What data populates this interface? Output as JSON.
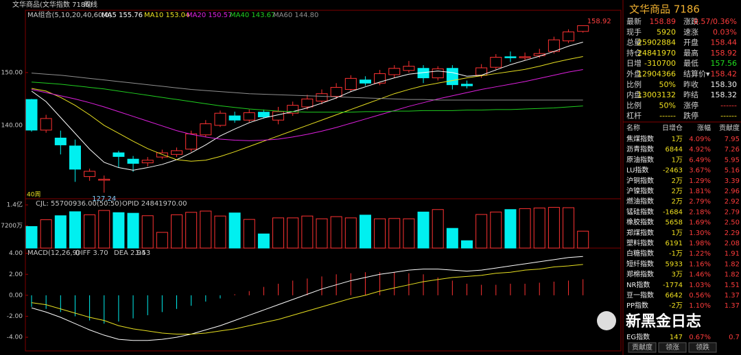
{
  "header": {
    "title": "文华商品(文华指数 7186)",
    "period": "周线"
  },
  "chart_data": [
    {
      "type": "candlestick",
      "indicator": "MA组合(5,10,20,40,60,0)",
      "period_count": "40周",
      "up_color": "#ff3232",
      "down_color": "#00f0f0",
      "ylim": [
        126.1,
        161.8
      ],
      "yticks": [
        {
          "value": 140,
          "label": "140.00"
        },
        {
          "value": 150,
          "label": "150.00"
        }
      ],
      "open": [
        144.9,
        139.1,
        137.6,
        136.1,
        130.3,
        129.6,
        134.8,
        133.6,
        132.9,
        134.0,
        134.5,
        135.5,
        138.2,
        140.0,
        141.8,
        141.0,
        142.5,
        141.0,
        142.3,
        143.5,
        144.6,
        145.5,
        146.8,
        148.6,
        148.0,
        149.6,
        150.4,
        150.8,
        149.0,
        150.8,
        147.8,
        149.5,
        151.0,
        153.0,
        152.8,
        153.2,
        154.0,
        156.0,
        157.8
      ],
      "close": [
        139.1,
        141.3,
        136.3,
        131.7,
        131.3,
        129.8,
        134.1,
        132.8,
        133.4,
        134.8,
        135.2,
        138.4,
        140.3,
        142.3,
        141.0,
        142.4,
        141.6,
        142.6,
        143.8,
        145.0,
        146.0,
        147.2,
        148.9,
        148.0,
        149.8,
        150.8,
        151.2,
        149.0,
        150.7,
        147.7,
        147.5,
        150.9,
        152.9,
        152.8,
        153.0,
        153.6,
        156.2,
        157.7,
        158.89
      ],
      "high": [
        145.0,
        142.0,
        139.0,
        137.3,
        131.8,
        130.5,
        135.2,
        134.2,
        134.0,
        135.4,
        135.8,
        139.0,
        141.0,
        142.8,
        142.6,
        143.0,
        143.0,
        143.5,
        144.5,
        145.8,
        146.8,
        148.0,
        149.5,
        149.3,
        150.5,
        151.4,
        152.2,
        151.4,
        151.2,
        151.4,
        148.5,
        151.6,
        153.5,
        154.0,
        153.8,
        154.5,
        156.8,
        158.2,
        158.92
      ],
      "low": [
        138.8,
        138.6,
        134.5,
        129.3,
        129.5,
        127.24,
        132.0,
        131.2,
        132.2,
        133.6,
        134.0,
        135.0,
        137.8,
        139.7,
        140.5,
        140.6,
        141.3,
        140.2,
        141.8,
        143.0,
        144.0,
        145.0,
        146.4,
        147.5,
        147.6,
        149.0,
        150.0,
        148.0,
        148.5,
        146.8,
        147.0,
        149.0,
        150.6,
        152.0,
        152.3,
        152.8,
        153.6,
        155.6,
        157.56
      ],
      "series": [
        {
          "name": "MA5",
          "value_label": "155.76",
          "color": "#ffffff",
          "values": [
            146.5,
            144.5,
            141.5,
            138.5,
            135.5,
            133.0,
            132.0,
            131.5,
            132.0,
            132.6,
            133.5,
            134.8,
            136.3,
            138.0,
            139.3,
            140.5,
            141.4,
            142.0,
            142.6,
            143.3,
            144.2,
            145.2,
            146.4,
            147.3,
            148.2,
            149.0,
            149.7,
            150.0,
            150.3,
            150.0,
            149.3,
            149.5,
            150.5,
            151.5,
            152.3,
            153.1,
            154.0,
            155.0,
            155.76
          ]
        },
        {
          "name": "MA10",
          "value_label": "153.04",
          "color": "#e8e020",
          "values": [
            147,
            146.5,
            145.3,
            143.8,
            142,
            140,
            138.5,
            137,
            135.6,
            134.5,
            133.5,
            133.2,
            133.4,
            134.1,
            135,
            136,
            137,
            138,
            139,
            140,
            141,
            142,
            143,
            144,
            145,
            146,
            146.8,
            147.5,
            148,
            148.5,
            149,
            149.4,
            149.8,
            150.2,
            150.6,
            151.2,
            151.9,
            152.5,
            153.04
          ]
        },
        {
          "name": "MA20",
          "value_label": "150.57",
          "color": "#e020e0",
          "values": [
            146.8,
            146.2,
            145.6,
            145,
            144.3,
            143.5,
            142.6,
            141.7,
            140.8,
            139.9,
            139.0,
            138.3,
            137.8,
            137.4,
            137.2,
            137.1,
            137.2,
            137.4,
            137.8,
            138.3,
            138.9,
            139.6,
            140.4,
            141.2,
            142,
            142.8,
            143.6,
            144.3,
            145,
            145.6,
            146.2,
            146.8,
            147.3,
            147.8,
            148.3,
            148.9,
            149.5,
            150.1,
            150.57
          ]
        },
        {
          "name": "MA40",
          "value_label": "143.67",
          "color": "#20d020",
          "values": [
            148.2,
            148,
            147.8,
            147.5,
            147.2,
            146.9,
            146.5,
            146.1,
            145.7,
            145.3,
            144.9,
            144.5,
            144.1,
            143.7,
            143.4,
            143.1,
            142.9,
            142.7,
            142.6,
            142.5,
            142.5,
            142.5,
            142.5,
            142.6,
            142.6,
            142.7,
            142.7,
            142.8,
            142.8,
            142.8,
            142.9,
            142.9,
            143,
            143,
            143.1,
            143.2,
            143.3,
            143.5,
            143.67
          ]
        },
        {
          "name": "MA60",
          "value_label": "144.80",
          "color": "#909090",
          "values": [
            149.9,
            149.7,
            149.5,
            149.2,
            148.9,
            148.6,
            148.3,
            148,
            147.7,
            147.4,
            147.1,
            146.8,
            146.6,
            146.4,
            146.2,
            146,
            145.9,
            145.8,
            145.7,
            145.6,
            145.5,
            145.4,
            145.3,
            145.2,
            145.1,
            145,
            144.9,
            144.9,
            144.8,
            144.8,
            144.8,
            144.8,
            144.8,
            144.8,
            144.8,
            144.8,
            144.8,
            144.8,
            144.8
          ]
        }
      ]
    },
    {
      "type": "volume",
      "indicator": "CJL: 55700936.00(50:50)",
      "indicator2": "OPID 24841970.00",
      "ylim": [
        0,
        16000
      ],
      "yticks": [
        {
          "value": 7200,
          "label": "7200万"
        },
        {
          "value": 14000,
          "label": "1.4亿"
        }
      ],
      "values": [
        7000,
        9200,
        10500,
        11800,
        10800,
        12200,
        11500,
        11300,
        10500,
        5100,
        10800,
        11600,
        12000,
        10400,
        11400,
        9300,
        4600,
        9800,
        9800,
        10400,
        9500,
        10200,
        9800,
        10700,
        9500,
        9600,
        9500,
        11700,
        12500,
        6400,
        2400,
        10900,
        11700,
        12500,
        12800,
        13000,
        13200,
        13100,
        5500
      ]
    },
    {
      "type": "macd",
      "indicator": "MACD(12,26,9)",
      "diff_label": "DIFF 3.70",
      "dea_label": "DEA 2.94",
      "macd_label": "1.53",
      "ylim": [
        -5.3,
        4.5
      ],
      "yticks": [
        {
          "value": 4,
          "label": "4.00"
        },
        {
          "value": 2,
          "label": "2.00"
        },
        {
          "value": 0,
          "label": "0.00"
        },
        {
          "value": -2,
          "label": "-2.00"
        },
        {
          "value": -4,
          "label": "-4.00"
        }
      ],
      "values": [
        -1.1,
        -1.3,
        -1.6,
        -2.0,
        -2.4,
        -2.7,
        -2.5,
        -2.2,
        -1.9,
        -1.6,
        -1.3,
        -1.0,
        -0.6,
        -0.3,
        0.1,
        0.4,
        0.8,
        1.1,
        1.4,
        1.6,
        1.8,
        2.0,
        2.1,
        2.2,
        2.2,
        2.2,
        2.1,
        2.0,
        1.7,
        1.4,
        1.1,
        1.0,
        1.0,
        1.1,
        1.1,
        1.2,
        1.3,
        1.4,
        1.53
      ],
      "series": [
        {
          "name": "DIFF",
          "color": "#ffffff",
          "values": [
            -1.2,
            -1.6,
            -2.1,
            -2.7,
            -3.3,
            -3.8,
            -4.2,
            -4.3,
            -4.3,
            -4.2,
            -4.0,
            -3.7,
            -3.3,
            -2.9,
            -2.4,
            -1.9,
            -1.4,
            -0.9,
            -0.4,
            0.1,
            0.6,
            1.0,
            1.4,
            1.7,
            2.0,
            2.2,
            2.4,
            2.5,
            2.5,
            2.4,
            2.3,
            2.4,
            2.6,
            2.8,
            3.0,
            3.2,
            3.4,
            3.6,
            3.7
          ]
        },
        {
          "name": "DEA",
          "color": "#e8e020",
          "values": [
            -0.7,
            -0.9,
            -1.3,
            -1.7,
            -2.1,
            -2.4,
            -2.9,
            -3.2,
            -3.4,
            -3.6,
            -3.7,
            -3.7,
            -3.6,
            -3.4,
            -3.2,
            -2.9,
            -2.6,
            -2.3,
            -1.9,
            -1.5,
            -1.1,
            -0.7,
            -0.3,
            0.0,
            0.4,
            0.7,
            1.0,
            1.3,
            1.5,
            1.7,
            1.8,
            1.9,
            2.1,
            2.2,
            2.4,
            2.5,
            2.7,
            2.8,
            2.94
          ]
        }
      ]
    }
  ],
  "quote": {
    "title": "文华商品  7186",
    "rows": [
      [
        "最新",
        "158.89",
        "涨跌",
        "0.57/0.36%"
      ],
      [
        "现手",
        "5920",
        "速涨",
        "0.03%"
      ],
      [
        "总量",
        "25902884",
        "开盘",
        "158.44"
      ],
      [
        "持仓",
        "24841970",
        "最高",
        "158.92"
      ],
      [
        "日增",
        "-310700",
        "最低",
        "157.56"
      ],
      [
        "外盘",
        "12904366",
        "结算价▾",
        "158.42"
      ],
      [
        "比例",
        "50%",
        "昨收",
        "158.30"
      ],
      [
        "内盘",
        "13003132",
        "昨结",
        "158.32"
      ],
      [
        "比例",
        "50%",
        "涨停",
        "------"
      ],
      [
        "杠杆",
        "------",
        "跌停",
        "------"
      ]
    ]
  },
  "index_table": {
    "columns": [
      "名称",
      "日增仓",
      "涨幅",
      "贡献度"
    ],
    "rows": [
      [
        "焦煤指数",
        "1万",
        "4.09%",
        "7.95"
      ],
      [
        "沥青指数",
        "6844",
        "4.92%",
        "7.26"
      ],
      [
        "原油指数",
        "1万",
        "6.49%",
        "5.95"
      ],
      [
        "LU指数",
        "-2463",
        "3.67%",
        "5.16"
      ],
      [
        "沪铜指数",
        "2万",
        "1.29%",
        "3.39"
      ],
      [
        "沪镍指数",
        "2万",
        "1.81%",
        "2.96"
      ],
      [
        "燃油指数",
        "2万",
        "2.79%",
        "2.92"
      ],
      [
        "锰硅指数",
        "-1684",
        "2.18%",
        "2.79"
      ],
      [
        "橡胶指数",
        "5658",
        "1.69%",
        "2.50"
      ],
      [
        "郑煤指数",
        "1万",
        "1.30%",
        "2.29"
      ],
      [
        "塑料指数",
        "6191",
        "1.98%",
        "2.08"
      ],
      [
        "白糖指数",
        "-1万",
        "1.22%",
        "1.91"
      ],
      [
        "短纤指数",
        "5933",
        "1.16%",
        "1.82"
      ],
      [
        "郑棉指数",
        "3万",
        "1.46%",
        "1.82"
      ],
      [
        "NR指数",
        "-1774",
        "1.03%",
        "1.51"
      ],
      [
        "豆一指数",
        "6642",
        "0.56%",
        "1.37"
      ],
      [
        "PP指数",
        "-2万",
        "1.10%",
        "1.37"
      ],
      [
        "EG指数",
        "147",
        "0.67%",
        "0.7"
      ]
    ]
  },
  "tabs": [
    "贡献度",
    "领涨",
    "领跌"
  ],
  "watermark": "新黑金日志"
}
